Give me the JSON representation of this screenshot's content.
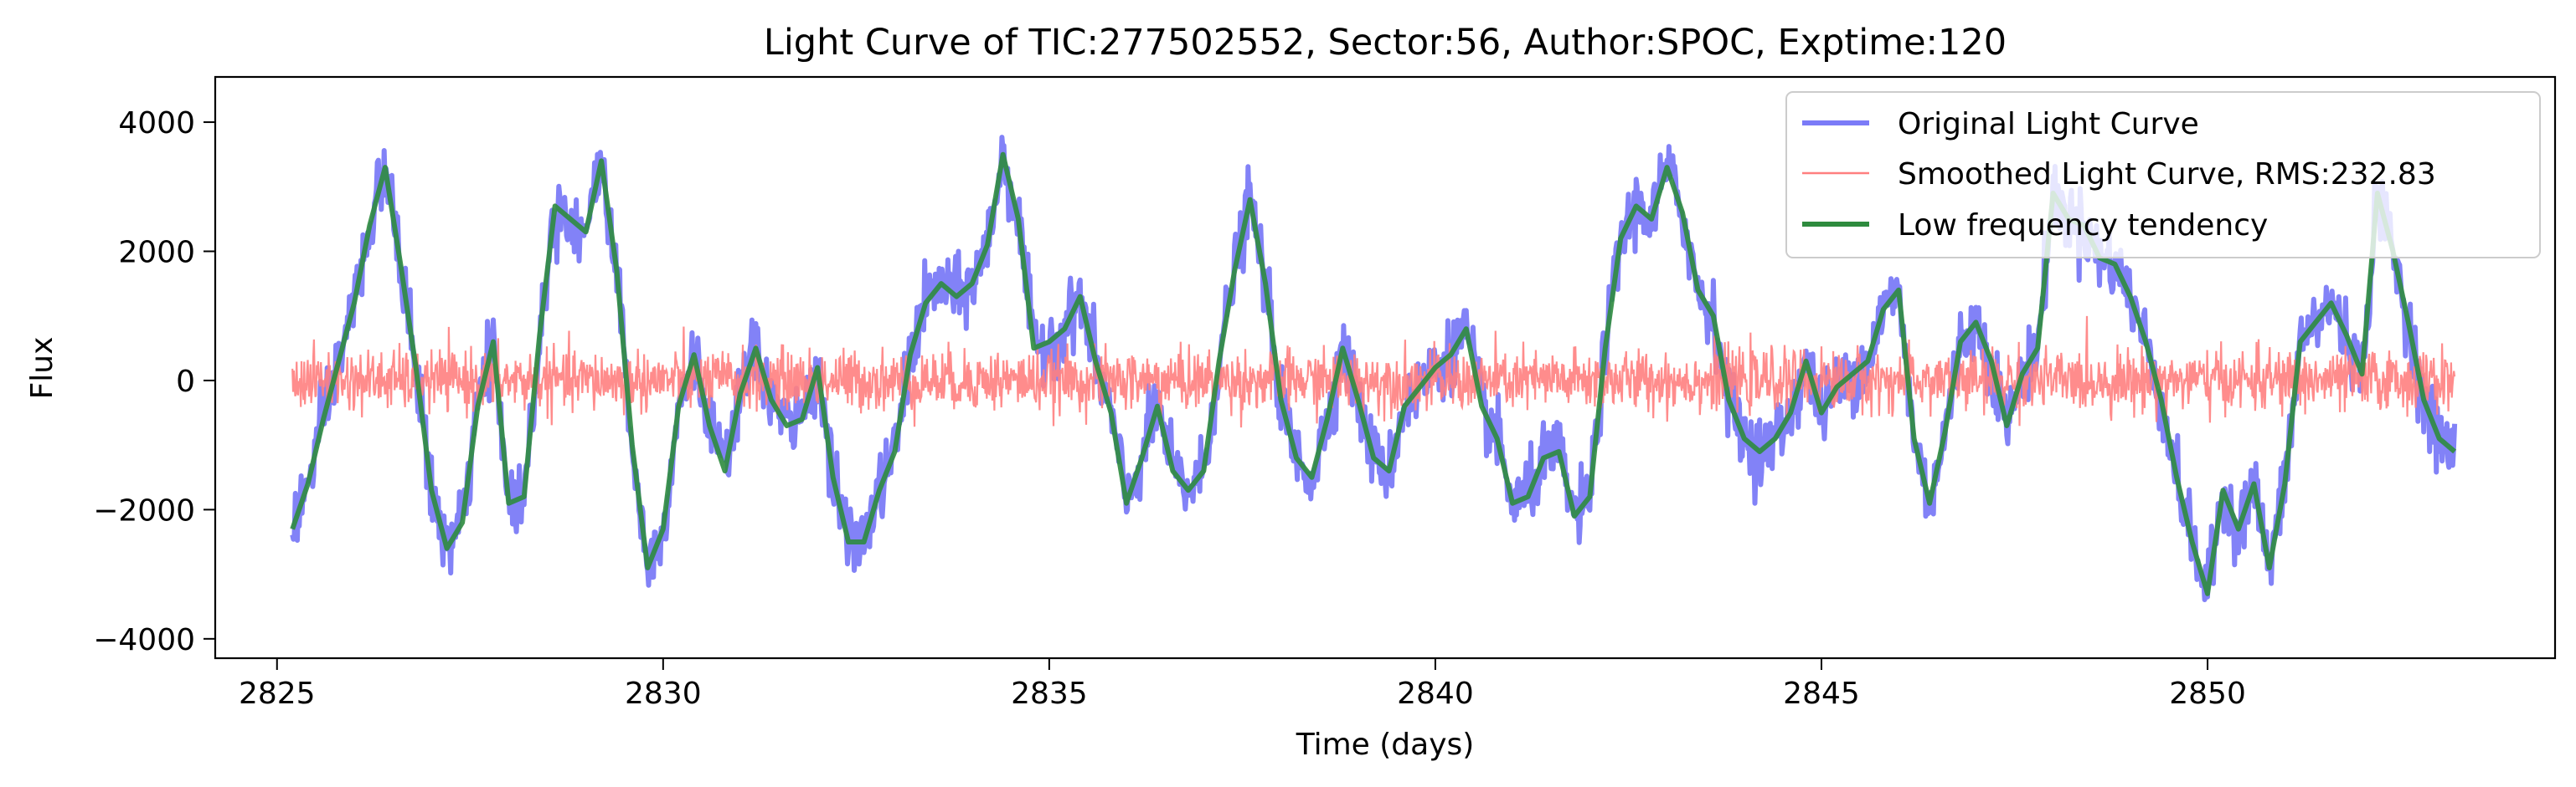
{
  "chart_data": {
    "type": "line",
    "title": "Light Curve of TIC:277502552, Sector:56, Author:SPOC, Exptime:120",
    "xlabel": "Time (days)",
    "ylabel": "Flux",
    "xlim": [
      2824.2,
      2854.5
    ],
    "ylim": [
      -4300,
      4700
    ],
    "xticks": [
      2825,
      2830,
      2835,
      2840,
      2845,
      2850
    ],
    "xtick_labels": [
      "2825",
      "2830",
      "2835",
      "2840",
      "2845",
      "2850"
    ],
    "yticks": [
      -4000,
      -2000,
      0,
      2000,
      4000
    ],
    "ytick_labels": [
      "−4000",
      "−2000",
      "0",
      "2000",
      "4000"
    ],
    "grid": false,
    "legend_position": "top-right",
    "series": [
      {
        "name": "Original Light Curve",
        "color": "#7b7bf7",
        "role": "original",
        "x": [
          2825.2,
          2825.4,
          2825.6,
          2825.8,
          2826.0,
          2826.2,
          2826.4,
          2826.6,
          2826.8,
          2827.0,
          2827.2,
          2827.4,
          2827.6,
          2827.8,
          2828.0,
          2828.2,
          2828.4,
          2828.6,
          2828.8,
          2829.0,
          2829.2,
          2829.4,
          2829.6,
          2829.8,
          2830.0,
          2830.2,
          2830.4,
          2830.6,
          2830.8,
          2831.0,
          2831.2,
          2831.4,
          2831.6,
          2831.8,
          2832.0,
          2832.2,
          2832.4,
          2832.6,
          2832.8,
          2833.0,
          2833.2,
          2833.4,
          2833.6,
          2833.8,
          2834.0,
          2834.2,
          2834.4,
          2834.6,
          2834.8,
          2835.0,
          2835.2,
          2835.4,
          2835.6,
          2835.8,
          2836.0,
          2836.2,
          2836.4,
          2836.6,
          2836.8,
          2837.0,
          2837.2,
          2837.4,
          2837.6,
          2837.8,
          2838.0,
          2838.2,
          2838.4,
          2838.6,
          2838.8,
          2839.0,
          2839.2,
          2839.4,
          2839.6,
          2839.8,
          2840.0,
          2840.2,
          2840.4,
          2840.6,
          2840.8,
          2841.0,
          2841.2,
          2841.4,
          2841.6,
          2841.8,
          2842.0,
          2842.2,
          2842.4,
          2842.6,
          2842.8,
          2843.0,
          2843.2,
          2843.4,
          2843.6,
          2843.8,
          2844.0,
          2844.2,
          2844.4,
          2844.6,
          2844.8,
          2845.0,
          2845.2,
          2845.4,
          2845.6,
          2845.8,
          2846.0,
          2846.2,
          2846.4,
          2846.6,
          2846.8,
          2847.0,
          2847.2,
          2847.4,
          2847.6,
          2847.8,
          2848.0,
          2848.2,
          2848.4,
          2848.6,
          2848.8,
          2849.0,
          2849.2,
          2849.4,
          2849.6,
          2849.8,
          2850.0,
          2850.2,
          2850.4,
          2850.6,
          2850.8,
          2851.0,
          2851.2,
          2851.4,
          2851.6,
          2851.8,
          2852.0,
          2852.2,
          2852.4,
          2852.6,
          2852.8,
          2853.0,
          2853.2
        ],
        "y": [
          -2300,
          -1600,
          -600,
          300,
          1200,
          2400,
          3300,
          1800,
          200,
          -1700,
          -2600,
          -2200,
          -400,
          600,
          -1900,
          -1800,
          700,
          2700,
          2500,
          2300,
          3400,
          1700,
          -1000,
          -2900,
          -2300,
          -400,
          400,
          -700,
          -1400,
          -200,
          500,
          -300,
          -700,
          -600,
          200,
          -1500,
          -2500,
          -2500,
          -1700,
          -1100,
          400,
          1200,
          1500,
          1300,
          1500,
          2100,
          3500,
          2500,
          500,
          600,
          800,
          1300,
          300,
          -500,
          -1900,
          -1200,
          -400,
          -1400,
          -1700,
          -1400,
          300,
          1700,
          2800,
          1500,
          -300,
          -1200,
          -1500,
          -600,
          500,
          -300,
          -1200,
          -1400,
          -400,
          -100,
          200,
          400,
          800,
          -400,
          -900,
          -1900,
          -1800,
          -1200,
          -1100,
          -2100,
          -1800,
          500,
          2200,
          2700,
          2500,
          3300,
          2600,
          1400,
          1000,
          -300,
          -900,
          -1100,
          -900,
          -500,
          300,
          -500,
          -100,
          100,
          300,
          1100,
          1400,
          -900,
          -1900,
          -800,
          600,
          900,
          300,
          -700,
          100,
          500,
          2900,
          2500,
          2400,
          1900,
          1800,
          1300,
          600,
          -300,
          -1500,
          -2500,
          -3300,
          -1700,
          -2300,
          -1600,
          -2900,
          -1600,
          600,
          900,
          1200,
          700,
          100,
          2900,
          2000,
          900,
          -300,
          -900,
          -1100
        ]
      },
      {
        "name": "Smoothed Light Curve, RMS:232.83",
        "color": "#ff7f7f",
        "role": "residual",
        "x_range": [
          2825.2,
          2853.2
        ],
        "rms": 232.83
      },
      {
        "name": "Low frequency tendency",
        "color": "#2e8b3e",
        "role": "trend",
        "x": [
          2825.2,
          2825.4,
          2825.6,
          2825.8,
          2826.0,
          2826.2,
          2826.4,
          2826.6,
          2826.8,
          2827.0,
          2827.2,
          2827.4,
          2827.6,
          2827.8,
          2828.0,
          2828.2,
          2828.4,
          2828.6,
          2828.8,
          2829.0,
          2829.2,
          2829.4,
          2829.6,
          2829.8,
          2830.0,
          2830.2,
          2830.4,
          2830.6,
          2830.8,
          2831.0,
          2831.2,
          2831.4,
          2831.6,
          2831.8,
          2832.0,
          2832.2,
          2832.4,
          2832.6,
          2832.8,
          2833.0,
          2833.2,
          2833.4,
          2833.6,
          2833.8,
          2834.0,
          2834.2,
          2834.4,
          2834.6,
          2834.8,
          2835.0,
          2835.2,
          2835.4,
          2835.6,
          2835.8,
          2836.0,
          2836.2,
          2836.4,
          2836.6,
          2836.8,
          2837.0,
          2837.2,
          2837.4,
          2837.6,
          2837.8,
          2838.0,
          2838.2,
          2838.4,
          2838.6,
          2838.8,
          2839.0,
          2839.2,
          2839.4,
          2839.6,
          2839.8,
          2840.0,
          2840.2,
          2840.4,
          2840.6,
          2840.8,
          2841.0,
          2841.2,
          2841.4,
          2841.6,
          2841.8,
          2842.0,
          2842.2,
          2842.4,
          2842.6,
          2842.8,
          2843.0,
          2843.2,
          2843.4,
          2843.6,
          2843.8,
          2844.0,
          2844.2,
          2844.4,
          2844.6,
          2844.8,
          2845.0,
          2845.2,
          2845.4,
          2845.6,
          2845.8,
          2846.0,
          2846.2,
          2846.4,
          2846.6,
          2846.8,
          2847.0,
          2847.2,
          2847.4,
          2847.6,
          2847.8,
          2848.0,
          2848.2,
          2848.4,
          2848.6,
          2848.8,
          2849.0,
          2849.2,
          2849.4,
          2849.6,
          2849.8,
          2850.0,
          2850.2,
          2850.4,
          2850.6,
          2850.8,
          2851.0,
          2851.2,
          2851.4,
          2851.6,
          2851.8,
          2852.0,
          2852.2,
          2852.4,
          2852.6,
          2852.8,
          2853.0,
          2853.2
        ],
        "y": [
          -2300,
          -1600,
          -600,
          300,
          1200,
          2400,
          3300,
          1800,
          200,
          -1700,
          -2600,
          -2200,
          -400,
          600,
          -1900,
          -1800,
          700,
          2700,
          2500,
          2300,
          3400,
          1700,
          -1000,
          -2900,
          -2300,
          -400,
          400,
          -700,
          -1400,
          -200,
          500,
          -300,
          -700,
          -600,
          200,
          -1500,
          -2500,
          -2500,
          -1700,
          -1100,
          400,
          1200,
          1500,
          1300,
          1500,
          2100,
          3500,
          2500,
          500,
          600,
          800,
          1300,
          300,
          -500,
          -1900,
          -1200,
          -400,
          -1400,
          -1700,
          -1400,
          300,
          1700,
          2800,
          1500,
          -300,
          -1200,
          -1500,
          -600,
          500,
          -300,
          -1200,
          -1400,
          -400,
          -100,
          200,
          400,
          800,
          -400,
          -900,
          -1900,
          -1800,
          -1200,
          -1100,
          -2100,
          -1800,
          500,
          2200,
          2700,
          2500,
          3300,
          2600,
          1400,
          1000,
          -300,
          -900,
          -1100,
          -900,
          -500,
          300,
          -500,
          -100,
          100,
          300,
          1100,
          1400,
          -900,
          -1900,
          -800,
          600,
          900,
          300,
          -700,
          100,
          500,
          2900,
          2500,
          2400,
          1900,
          1800,
          1300,
          600,
          -300,
          -1500,
          -2500,
          -3300,
          -1700,
          -2300,
          -1600,
          -2900,
          -1600,
          600,
          900,
          1200,
          700,
          100,
          2900,
          2000,
          900,
          -300,
          -900,
          -1100
        ]
      }
    ]
  }
}
